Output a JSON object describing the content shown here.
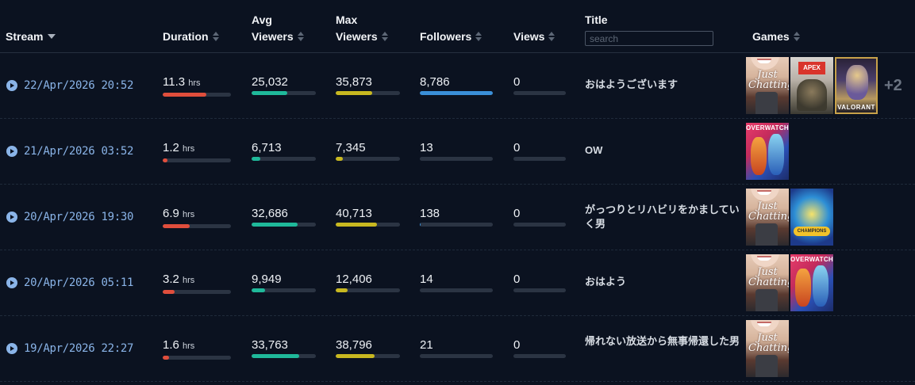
{
  "columns": {
    "stream": "Stream",
    "duration": "Duration",
    "avg_viewers_line1": "Avg",
    "avg_viewers_line2": "Viewers",
    "max_viewers_line1": "Max",
    "max_viewers_line2": "Viewers",
    "followers": "Followers",
    "views": "Views",
    "title": "Title",
    "games": "Games"
  },
  "search": {
    "placeholder": "search",
    "value": ""
  },
  "colors": {
    "duration_bar": "#e04e3c",
    "avg_viewers_bar": "#1fb99a",
    "max_viewers_bar": "#c8b820",
    "followers_bar": "#3a8fd8",
    "link": "#8ab4e8"
  },
  "rows": [
    {
      "date": "22/Apr/2026 20:52",
      "duration": "11.3",
      "duration_unit": "hrs",
      "duration_pct": 0.64,
      "avg_viewers": "25,032",
      "avg_pct": 0.55,
      "max_viewers": "35,873",
      "max_pct": 0.57,
      "followers": "8,786",
      "followers_pct": 1.0,
      "views": "0",
      "views_pct": 0,
      "title": "おはようございます",
      "games": [
        "just-chatting",
        "apex-legends",
        "valorant"
      ],
      "game_labels": [
        "Just Chatting",
        "APEX",
        "VALORANT"
      ],
      "extra_games": "+2"
    },
    {
      "date": "21/Apr/2026 03:52",
      "duration": "1.2",
      "duration_unit": "hrs",
      "duration_pct": 0.07,
      "avg_viewers": "6,713",
      "avg_pct": 0.14,
      "max_viewers": "7,345",
      "max_pct": 0.11,
      "followers": "13",
      "followers_pct": 0.0,
      "views": "0",
      "views_pct": 0,
      "title": "OW",
      "games": [
        "overwatch"
      ],
      "game_labels": [
        "OVERWATCH"
      ],
      "extra_games": ""
    },
    {
      "date": "20/Apr/2026 19:30",
      "duration": "6.9",
      "duration_unit": "hrs",
      "duration_pct": 0.39,
      "avg_viewers": "32,686",
      "avg_pct": 0.72,
      "max_viewers": "40,713",
      "max_pct": 0.64,
      "followers": "138",
      "followers_pct": 0.01,
      "views": "0",
      "views_pct": 0,
      "title": "がっつりとリハビリをかましていく男",
      "games": [
        "just-chatting",
        "mario-kart-champions"
      ],
      "game_labels": [
        "Just Chatting",
        "CHAMPIONS"
      ],
      "extra_games": ""
    },
    {
      "date": "20/Apr/2026 05:11",
      "duration": "3.2",
      "duration_unit": "hrs",
      "duration_pct": 0.18,
      "avg_viewers": "9,949",
      "avg_pct": 0.21,
      "max_viewers": "12,406",
      "max_pct": 0.19,
      "followers": "14",
      "followers_pct": 0.0,
      "views": "0",
      "views_pct": 0,
      "title": "おはよう",
      "games": [
        "just-chatting",
        "overwatch"
      ],
      "game_labels": [
        "Just Chatting",
        "OVERWATCH"
      ],
      "extra_games": ""
    },
    {
      "date": "19/Apr/2026 22:27",
      "duration": "1.6",
      "duration_unit": "hrs",
      "duration_pct": 0.09,
      "avg_viewers": "33,763",
      "avg_pct": 0.74,
      "max_viewers": "38,796",
      "max_pct": 0.61,
      "followers": "21",
      "followers_pct": 0.0,
      "views": "0",
      "views_pct": 0,
      "title": "帰れない放送から無事帰還した男",
      "games": [
        "just-chatting"
      ],
      "game_labels": [
        "Just Chatting"
      ],
      "extra_games": ""
    }
  ]
}
